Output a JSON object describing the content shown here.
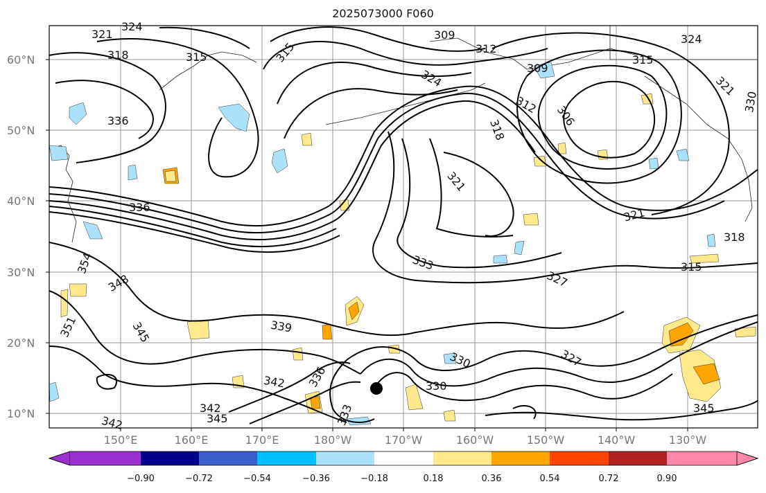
{
  "title": "2025073000 F060",
  "lat_labels": [
    "60°N",
    "50°N",
    "40°N",
    "30°N",
    "20°N",
    "10°N"
  ],
  "lon_labels": [
    "150°E",
    "160°E",
    "170°E",
    "180°W",
    "170°W",
    "160°W",
    "150°W",
    "140°W",
    "130°W"
  ],
  "colorbar": {
    "ticks": [
      "−0.90",
      "−0.72",
      "−0.54",
      "−0.36",
      "−0.18",
      "0.18",
      "0.36",
      "0.54",
      "0.72",
      "0.90"
    ],
    "colors": [
      "#9b30d0",
      "#00008b",
      "#3a5fcd",
      "#00bfff",
      "#abe1fa",
      "#ffffff",
      "#ffe98a",
      "#ffa500",
      "#ff4500",
      "#b22222",
      "#ff88aa"
    ]
  },
  "contour_labels": [
    {
      "text": "321"
    },
    {
      "text": "324"
    },
    {
      "text": "318"
    },
    {
      "text": "315"
    },
    {
      "text": "315"
    },
    {
      "text": "309"
    },
    {
      "text": "312"
    },
    {
      "text": "324"
    },
    {
      "text": "309"
    },
    {
      "text": "315"
    },
    {
      "text": "324"
    },
    {
      "text": "321"
    },
    {
      "text": "330"
    },
    {
      "text": "312"
    },
    {
      "text": "306"
    },
    {
      "text": "318"
    },
    {
      "text": "336"
    },
    {
      "text": "321"
    },
    {
      "text": "336"
    },
    {
      "text": "321"
    },
    {
      "text": "318"
    },
    {
      "text": "354"
    },
    {
      "text": "348"
    },
    {
      "text": "333"
    },
    {
      "text": "327"
    },
    {
      "text": "315"
    },
    {
      "text": "351"
    },
    {
      "text": "345"
    },
    {
      "text": "339"
    },
    {
      "text": "330"
    },
    {
      "text": "327"
    },
    {
      "text": "342"
    },
    {
      "text": "336"
    },
    {
      "text": "330"
    },
    {
      "text": "342"
    },
    {
      "text": "345"
    },
    {
      "text": "342"
    },
    {
      "text": "345"
    },
    {
      "text": "333"
    }
  ],
  "colors": {
    "contour": "#000000",
    "grid": "#888888",
    "axis_text": "#777777"
  },
  "marker": "tropical-cyclone-dot"
}
